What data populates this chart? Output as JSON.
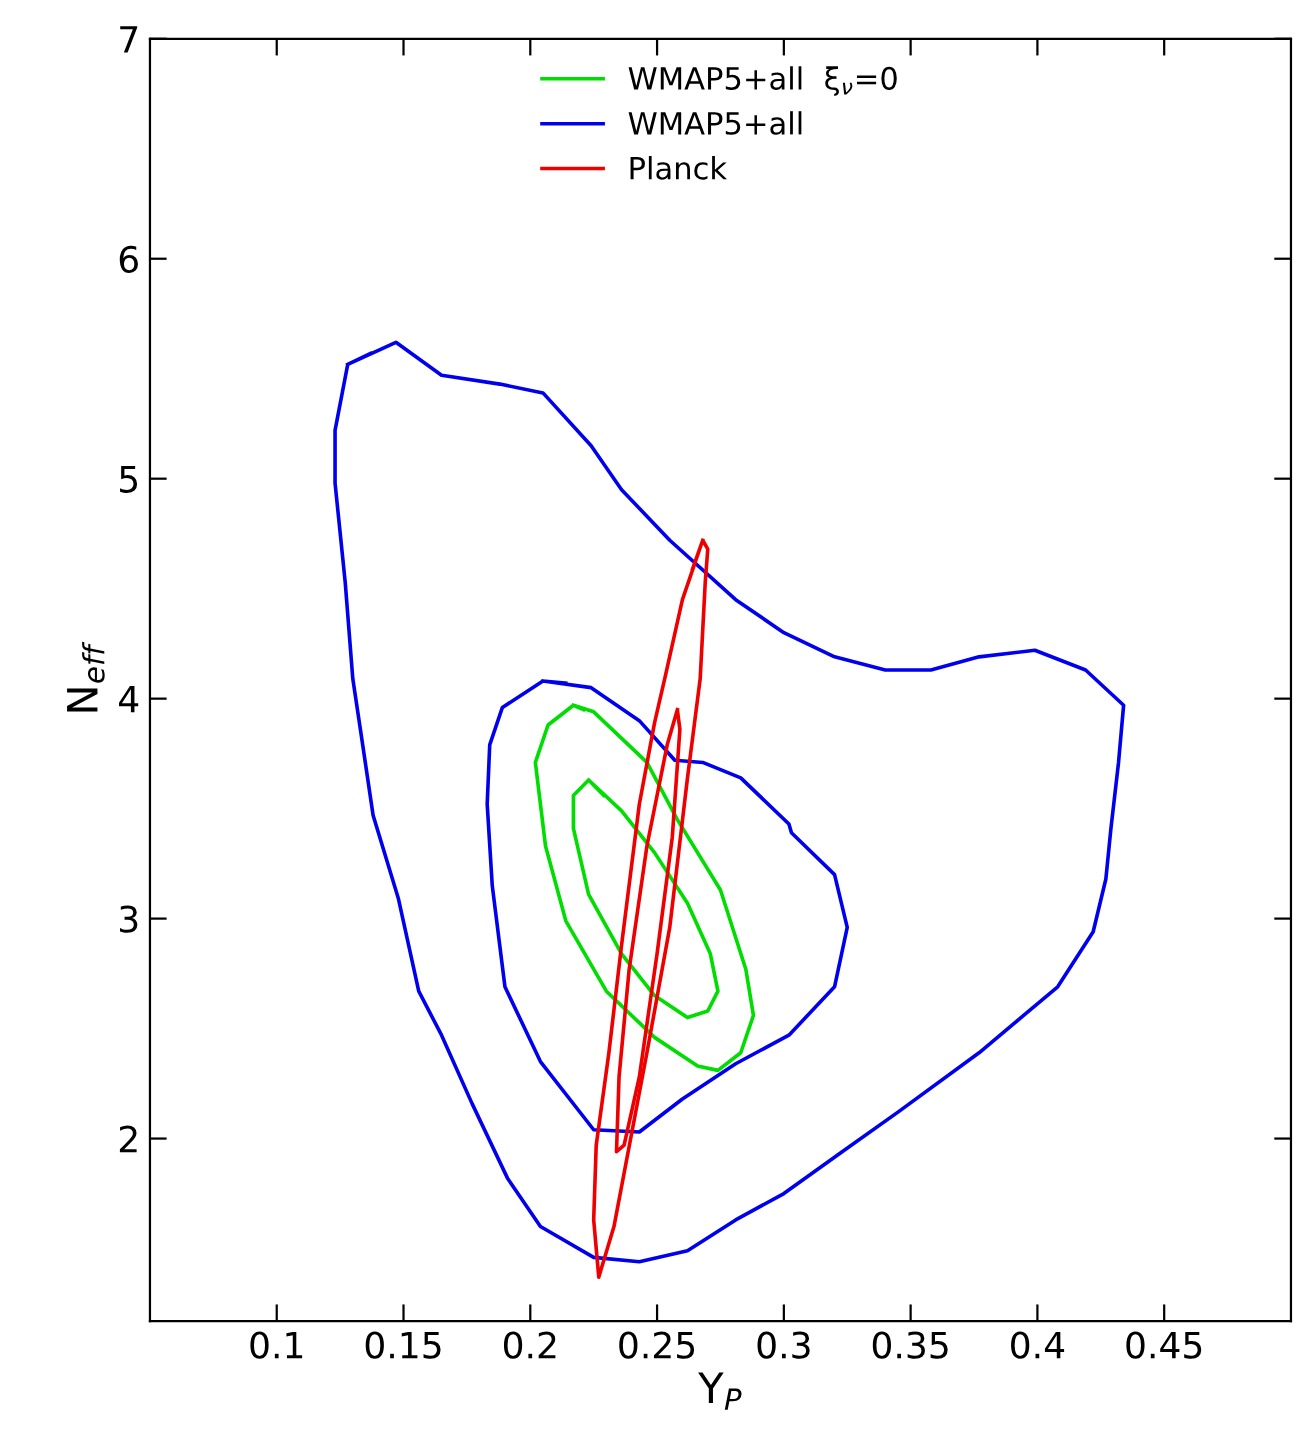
{
  "chart_data": {
    "type": "line",
    "xlabel": "Y$_{P}$",
    "ylabel": "N$_{eff}$",
    "xlim": [
      0.05,
      0.5
    ],
    "ylim": [
      1.17,
      7
    ],
    "xticks": [
      0.1,
      0.15,
      0.2,
      0.25,
      0.3,
      0.35,
      0.4,
      0.45
    ],
    "yticks": [
      2,
      3,
      4,
      5,
      6,
      7
    ],
    "grid": false,
    "legend": "top",
    "marker": "none",
    "line_style": "solid",
    "series": [
      {
        "name": "WMAP5+all  ξ$_{ν}$=0",
        "color": "#00dd00",
        "x": [
          0.217,
          0.225,
          0.246,
          0.258,
          0.275,
          0.285,
          0.288,
          0.283,
          0.274,
          0.266,
          0.249,
          0.23,
          0.214,
          0.206,
          0.202,
          0.207,
          0.217,
          0.221
        ],
        "values": [
          3.97,
          3.94,
          3.71,
          3.45,
          3.13,
          2.77,
          2.56,
          2.39,
          2.31,
          2.33,
          2.46,
          2.67,
          2.99,
          3.33,
          3.71,
          3.88,
          3.97,
          3.95
        ]
      },
      {
        "color": "#00dd00",
        "x": [
          0.223,
          0.236,
          0.249,
          0.262,
          0.271,
          0.274,
          0.27,
          0.262,
          0.249,
          0.236,
          0.223,
          0.217,
          0.217,
          0.223,
          0.229
        ],
        "values": [
          3.63,
          3.49,
          3.3,
          3.07,
          2.84,
          2.67,
          2.58,
          2.55,
          2.65,
          2.84,
          3.11,
          3.41,
          3.56,
          3.63,
          3.56
        ]
      },
      {
        "name": "WMAP5+all",
        "color": "#0000ee",
        "x": [
          0.128,
          0.147,
          0.165,
          0.188,
          0.205,
          0.224,
          0.236,
          0.255,
          0.281,
          0.3,
          0.32,
          0.34,
          0.358,
          0.377,
          0.399,
          0.419,
          0.434,
          0.432,
          0.429,
          0.427,
          0.422,
          0.408,
          0.377,
          0.345,
          0.323,
          0.3,
          0.281,
          0.262,
          0.243,
          0.225,
          0.204,
          0.191,
          0.177,
          0.165,
          0.156,
          0.148,
          0.138,
          0.133,
          0.13,
          0.127,
          0.123,
          0.123,
          0.128,
          0.137
        ],
        "values": [
          5.52,
          5.62,
          5.47,
          5.43,
          5.39,
          5.15,
          4.95,
          4.72,
          4.45,
          4.3,
          4.19,
          4.13,
          4.13,
          4.19,
          4.22,
          4.13,
          3.97,
          3.71,
          3.41,
          3.18,
          2.94,
          2.69,
          2.39,
          2.12,
          1.94,
          1.75,
          1.63,
          1.49,
          1.44,
          1.46,
          1.6,
          1.82,
          2.16,
          2.47,
          2.67,
          3.09,
          3.47,
          3.86,
          4.09,
          4.53,
          4.98,
          5.22,
          5.52,
          5.57
        ]
      },
      {
        "color": "#0000ee",
        "x": [
          0.205,
          0.224,
          0.243,
          0.257,
          0.268,
          0.283,
          0.302,
          0.303,
          0.32,
          0.325,
          0.32,
          0.302,
          0.281,
          0.26,
          0.243,
          0.225,
          0.204,
          0.19,
          0.185,
          0.183,
          0.184,
          0.189,
          0.205,
          0.214
        ],
        "values": [
          4.08,
          4.05,
          3.9,
          3.72,
          3.71,
          3.64,
          3.43,
          3.39,
          3.2,
          2.96,
          2.69,
          2.47,
          2.34,
          2.18,
          2.03,
          2.04,
          2.35,
          2.69,
          3.15,
          3.52,
          3.79,
          3.96,
          4.08,
          4.07
        ]
      },
      {
        "name": "Planck",
        "color": "#ee0000",
        "x": [
          0.268,
          0.26,
          0.253,
          0.249,
          0.243,
          0.236,
          0.231,
          0.226,
          0.225,
          0.227,
          0.233,
          0.246,
          0.255,
          0.262,
          0.267,
          0.269,
          0.27,
          0.268,
          0.264
        ],
        "values": [
          4.72,
          4.45,
          4.09,
          3.89,
          3.52,
          2.88,
          2.39,
          1.97,
          1.63,
          1.37,
          1.6,
          2.39,
          2.96,
          3.64,
          4.09,
          4.53,
          4.68,
          4.72,
          4.59
        ]
      },
      {
        "color": "#ee0000",
        "x": [
          0.258,
          0.254,
          0.246,
          0.239,
          0.235,
          0.234,
          0.237,
          0.243,
          0.25,
          0.256,
          0.259,
          0.258,
          0.256
        ],
        "values": [
          3.95,
          3.79,
          3.33,
          2.77,
          2.28,
          1.94,
          1.97,
          2.28,
          2.84,
          3.37,
          3.86,
          3.95,
          3.87
        ]
      }
    ]
  }
}
